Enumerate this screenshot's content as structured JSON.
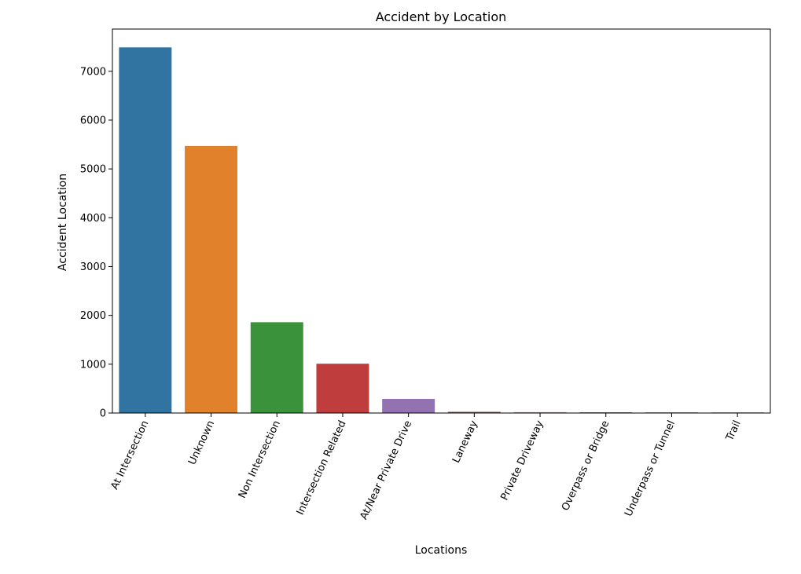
{
  "chart_data": {
    "type": "bar",
    "title": "Accident by Location",
    "xlabel": "Locations",
    "ylabel": "Accident Location",
    "categories": [
      "At Intersection",
      "Unknown",
      "Non Intersection",
      "Intersection Related",
      "At/Near Private Drive",
      "Laneway",
      "Private Driveway",
      "Overpass or Bridge",
      "Underpass or Tunnel",
      "Trail"
    ],
    "values": [
      7490,
      5470,
      1860,
      1010,
      290,
      25,
      18,
      16,
      15,
      14
    ],
    "colors": [
      "#3274a1",
      "#e1812c",
      "#3a923a",
      "#c03d3e",
      "#9372b2",
      "#845b53",
      "#d684bd",
      "#7f7f7f",
      "#a9aa35",
      "#2ed0d0"
    ],
    "yticks": [
      0,
      1000,
      2000,
      3000,
      4000,
      5000,
      6000,
      7000
    ],
    "ylim": [
      0,
      7865
    ],
    "grid": false,
    "legend": "none"
  }
}
